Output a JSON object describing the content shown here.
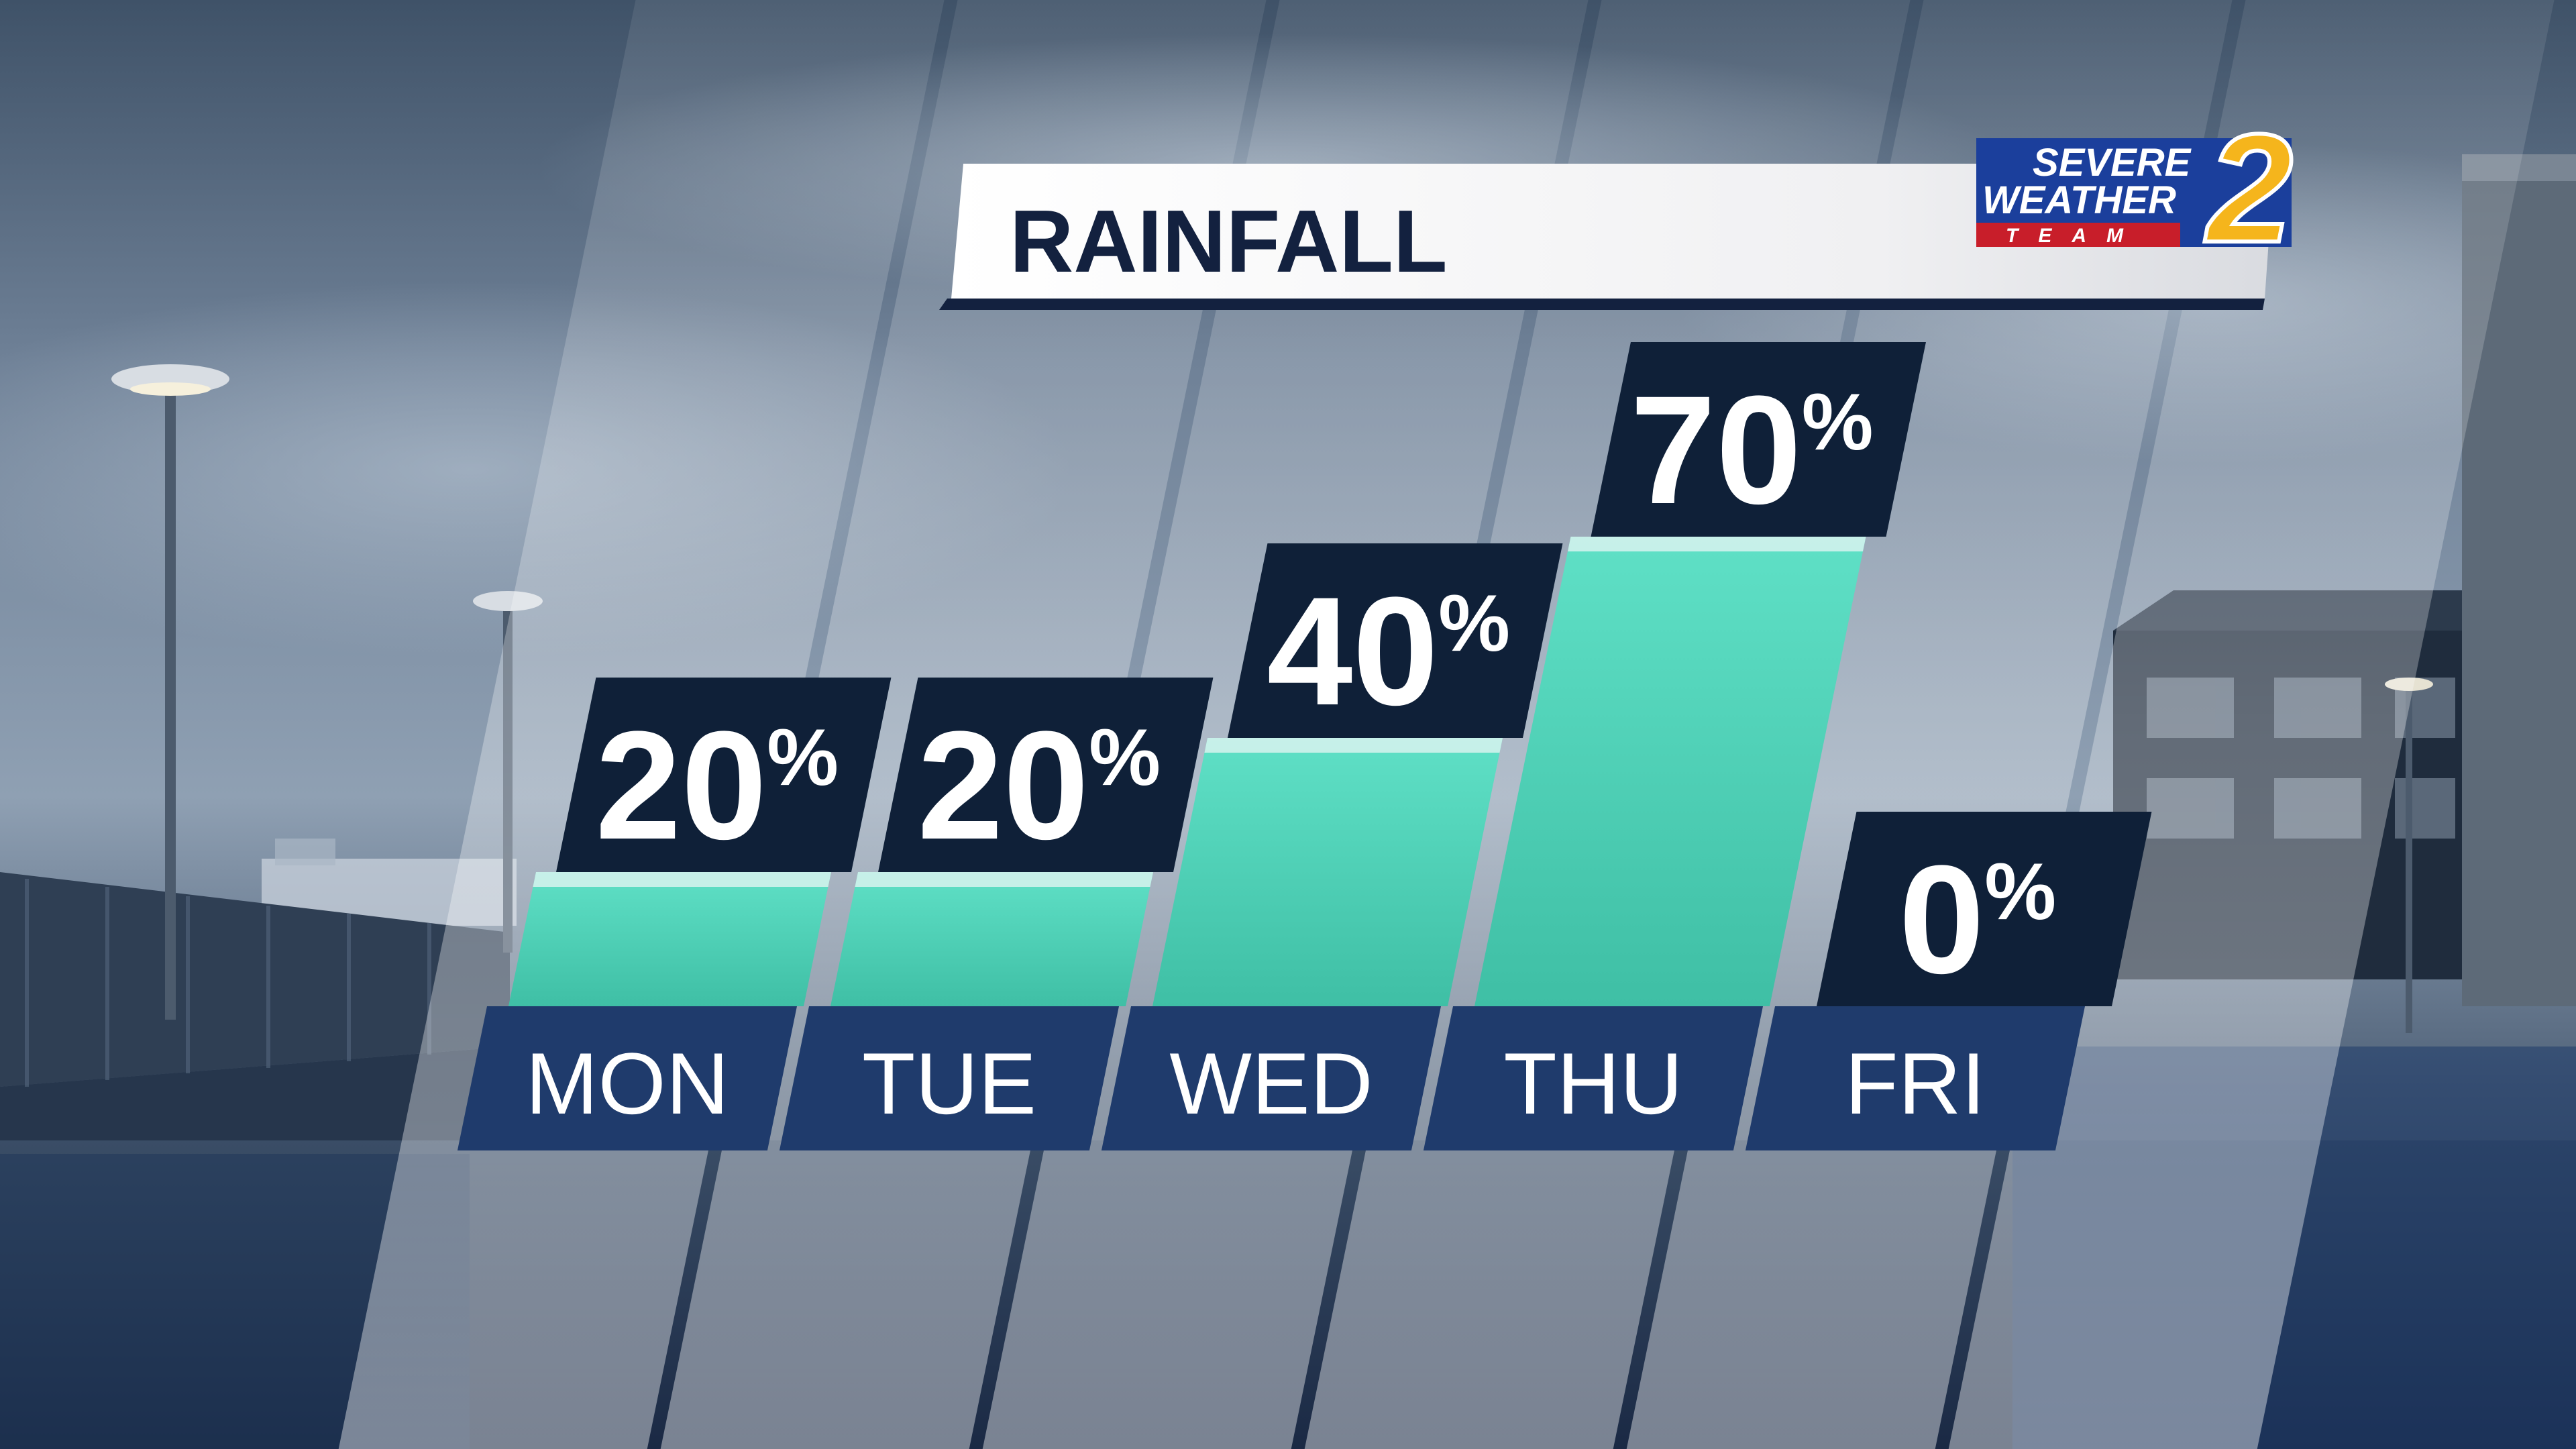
{
  "chart_data": {
    "type": "bar",
    "title": "RAINFALL",
    "categories": [
      "MON",
      "TUE",
      "WED",
      "THU",
      "FRI"
    ],
    "values": [
      20,
      20,
      40,
      70,
      0
    ],
    "value_labels": [
      "20",
      "20",
      "40",
      "70",
      "0"
    ],
    "unit": "%",
    "ylim": [
      0,
      100
    ]
  },
  "logo": {
    "line1": "SEVERE",
    "line2": "WEATHER",
    "line3": "TEAM",
    "number": "2"
  },
  "colors": {
    "panel_navy": "#0f2038",
    "label_band": "#1f3b6c",
    "water": "#48cdb2",
    "title_text": "#13213f",
    "logo_blue": "#1b3f9c",
    "logo_red": "#c81e2a",
    "logo_gold": "#f5b51c"
  }
}
